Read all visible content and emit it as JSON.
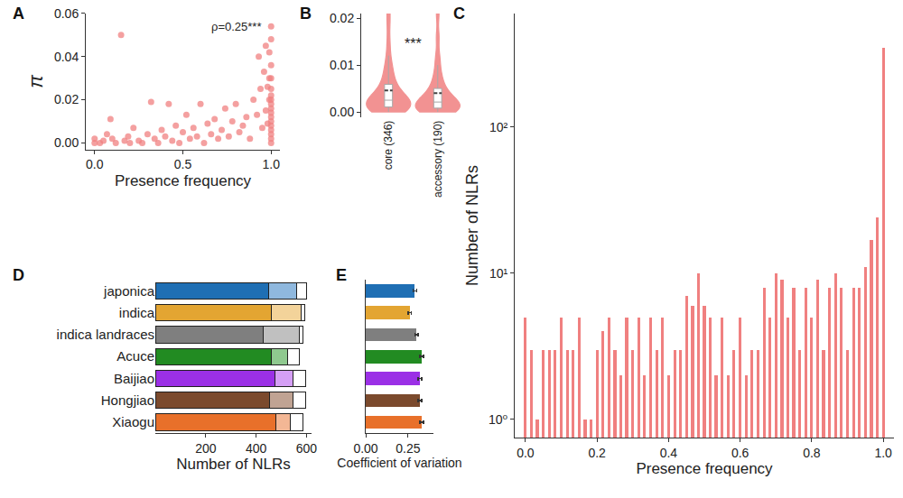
{
  "chart_data": [
    {
      "title": "A",
      "type": "scatter",
      "color": "#f08080",
      "grid": false,
      "xlabel": "Presence frequency",
      "ylabel": "π",
      "x": [
        0.0,
        0.0,
        0.03,
        0.05,
        0.07,
        0.09,
        0.1,
        0.12,
        0.15,
        0.17,
        0.19,
        0.2,
        0.22,
        0.25,
        0.27,
        0.3,
        0.32,
        0.34,
        0.36,
        0.38,
        0.4,
        0.42,
        0.44,
        0.46,
        0.48,
        0.5,
        0.52,
        0.54,
        0.56,
        0.58,
        0.6,
        0.62,
        0.64,
        0.66,
        0.68,
        0.7,
        0.72,
        0.74,
        0.76,
        0.78,
        0.8,
        0.82,
        0.84,
        0.86,
        0.88,
        0.9,
        0.92,
        0.93,
        0.94,
        0.95,
        0.96,
        0.97,
        0.97,
        0.98,
        0.98,
        0.99,
        0.99,
        0.99,
        1.0,
        1.0,
        1.0,
        1.0,
        1.0,
        1.0,
        1.0,
        1.0,
        1.0,
        1.0,
        1.0,
        1.0,
        1.0,
        1.0,
        1.0,
        1.0,
        1.0
      ],
      "values": [
        0.002,
        0.0,
        0.0,
        0.001,
        0.004,
        0.011,
        0.002,
        0.0,
        0.05,
        0.001,
        0.003,
        0.0,
        0.007,
        0.001,
        0.0,
        0.004,
        0.019,
        0.002,
        0.0,
        0.006,
        0.003,
        0.018,
        0.001,
        0.008,
        0.0,
        0.005,
        0.013,
        0.002,
        0.007,
        0.003,
        0.018,
        0.0,
        0.009,
        0.004,
        0.011,
        0.002,
        0.006,
        0.016,
        0.003,
        0.01,
        0.018,
        0.005,
        0.008,
        0.012,
        0.002,
        0.02,
        0.013,
        0.04,
        0.025,
        0.007,
        0.033,
        0.045,
        0.015,
        0.026,
        0.009,
        0.042,
        0.03,
        0.02,
        0.054,
        0.048,
        0.036,
        0.03,
        0.025,
        0.022,
        0.02,
        0.018,
        0.016,
        0.014,
        0.012,
        0.01,
        0.008,
        0.006,
        0.004,
        0.002,
        0.0
      ],
      "xlim": [
        -0.05,
        1.05
      ],
      "xticks": [
        {
          "value": 0,
          "label": "0.0"
        },
        {
          "value": 0.5,
          "label": "0.5"
        },
        {
          "value": 1,
          "label": "1.0"
        }
      ],
      "ylim": [
        -0.003,
        0.06
      ],
      "yticks": [
        {
          "value": 0,
          "label": "0.00"
        },
        {
          "value": 0.02,
          "label": "0.02"
        },
        {
          "value": 0.04,
          "label": "0.04"
        },
        {
          "value": 0.06,
          "label": "0.06"
        }
      ],
      "annotations": [
        {
          "text": "ρ=0.25***",
          "x": 0.8,
          "y": 0.054
        }
      ]
    },
    {
      "title": "B",
      "type": "violin",
      "color": "#f08080",
      "grid": false,
      "categories": [
        "core (346)",
        "accessory (190)"
      ],
      "samples": [
        [
          0,
          0,
          0.0002,
          0.0004,
          0.0005,
          0.0006,
          0.0008,
          0.001,
          0.001,
          0.0012,
          0.0014,
          0.0015,
          0.0016,
          0.0018,
          0.002,
          0.002,
          0.0022,
          0.0025,
          0.0028,
          0.003,
          0.0032,
          0.0035,
          0.004,
          0.0045,
          0.005,
          0.0055,
          0.006,
          0.007,
          0.008,
          0.009,
          0.01,
          0.012,
          0.015,
          0.019,
          0.022
        ],
        [
          0,
          0,
          0,
          0.0002,
          0.0003,
          0.0005,
          0.0006,
          0.0008,
          0.001,
          0.001,
          0.0012,
          0.0013,
          0.0015,
          0.0017,
          0.002,
          0.0022,
          0.0025,
          0.0028,
          0.003,
          0.0035,
          0.004,
          0.0045,
          0.005,
          0.006,
          0.007,
          0.008,
          0.01,
          0.012,
          0.016,
          0.021
        ]
      ],
      "ylim": [
        -0.0012,
        0.021
      ],
      "yticks": [
        {
          "value": 0,
          "label": "0.00"
        },
        {
          "value": 0.01,
          "label": "0.01"
        },
        {
          "value": 0.02,
          "label": "0.02"
        }
      ],
      "annotations": [
        {
          "text": "***",
          "x": 0.5,
          "y": 0.0145
        }
      ]
    },
    {
      "title": "C",
      "type": "bar",
      "color": "#f08080",
      "grid": false,
      "log": "y",
      "xlabel": "Presence frequency",
      "ylabel": "Number of NLRs",
      "x": [
        0,
        0.017,
        0.033,
        0.05,
        0.067,
        0.083,
        0.1,
        0.117,
        0.133,
        0.15,
        0.167,
        0.183,
        0.2,
        0.217,
        0.233,
        0.25,
        0.267,
        0.283,
        0.3,
        0.317,
        0.333,
        0.35,
        0.367,
        0.383,
        0.4,
        0.417,
        0.433,
        0.45,
        0.467,
        0.483,
        0.5,
        0.517,
        0.533,
        0.55,
        0.567,
        0.583,
        0.6,
        0.617,
        0.633,
        0.65,
        0.667,
        0.683,
        0.7,
        0.717,
        0.733,
        0.75,
        0.767,
        0.783,
        0.8,
        0.817,
        0.833,
        0.85,
        0.867,
        0.883,
        0.9,
        0.917,
        0.933,
        0.95,
        0.967,
        0.983,
        1.0
      ],
      "values": [
        5,
        3,
        1,
        3,
        3,
        3,
        5,
        3,
        3,
        5,
        1,
        1,
        3,
        4,
        5,
        3,
        2,
        5,
        3,
        5,
        2,
        5,
        3,
        5,
        2,
        3,
        3,
        7,
        6,
        10,
        6,
        5,
        2,
        5,
        2,
        3,
        5,
        2,
        3,
        3,
        8,
        5,
        10,
        9,
        5,
        8,
        3,
        8,
        5,
        9,
        3,
        8,
        10,
        8,
        3,
        8,
        8,
        11,
        17,
        24,
        350
      ],
      "xlim": [
        -0.03,
        1.03
      ],
      "xticks": [
        {
          "value": 0,
          "label": "0.0"
        },
        {
          "value": 0.2,
          "label": "0.2"
        },
        {
          "value": 0.4,
          "label": "0.4"
        },
        {
          "value": 0.6,
          "label": "0.6"
        },
        {
          "value": 0.8,
          "label": "0.8"
        },
        {
          "value": 1,
          "label": "1.0"
        }
      ],
      "ylim": [
        0.75,
        600
      ],
      "yticks": [
        {
          "value": 1,
          "label": "10⁰"
        },
        {
          "value": 10,
          "label": "10¹"
        },
        {
          "value": 100,
          "label": "10²"
        }
      ]
    },
    {
      "title": "D",
      "type": "bar",
      "orientation": "horizontal",
      "stacked": true,
      "grid": false,
      "xlabel": "Number of NLRs",
      "categories": [
        "japonica",
        "indica",
        "indica landraces",
        "Acuce",
        "Baijiao",
        "Hongjiao",
        "Xiaogu"
      ],
      "series": [
        {
          "colors": [
            "#1f6fb4",
            "#e3a532",
            "#7f7f7f",
            "#228b22",
            "#9b30e6",
            "#7b4a2d",
            "#e8702a"
          ],
          "values": [
            450,
            462,
            430,
            460,
            475,
            455,
            480
          ]
        },
        {
          "colors": [
            "#8fb8de",
            "#f3d39a",
            "#c0c0c0",
            "#8fc98f",
            "#d59ff5",
            "#c0a393",
            "#f3b795"
          ],
          "values": [
            110,
            118,
            140,
            65,
            70,
            90,
            55
          ]
        },
        {
          "colors": [
            "#ffffff",
            "#ffffff",
            "#ffffff",
            "#ffffff",
            "#ffffff",
            "#ffffff",
            "#ffffff"
          ],
          "values": [
            40,
            13,
            15,
            45,
            50,
            50,
            50
          ]
        }
      ],
      "xlim": [
        0,
        620
      ],
      "xticks": [
        200,
        400,
        600
      ]
    },
    {
      "title": "E",
      "type": "bar",
      "orientation": "horizontal",
      "grid": false,
      "tick_labels": "x",
      "xlabel": "Coefficient of variation",
      "categories": [
        "japonica",
        "indica",
        "indica landraces",
        "Acuce",
        "Baijiao",
        "Hongjiao",
        "Xiaogu"
      ],
      "values": [
        0.29,
        0.26,
        0.3,
        0.33,
        0.32,
        0.32,
        0.33
      ],
      "errors": [
        0.01,
        0.01,
        0.01,
        0.01,
        0.01,
        0.01,
        0.01
      ],
      "colors": [
        "#1f6fb4",
        "#e3a532",
        "#7f7f7f",
        "#228b22",
        "#9b30e6",
        "#7b4a2d",
        "#e8702a"
      ],
      "xlim": [
        0,
        0.4
      ],
      "xticks": [
        {
          "value": 0,
          "label": "0.00"
        },
        {
          "value": 0.25,
          "label": "0.25"
        }
      ]
    }
  ]
}
